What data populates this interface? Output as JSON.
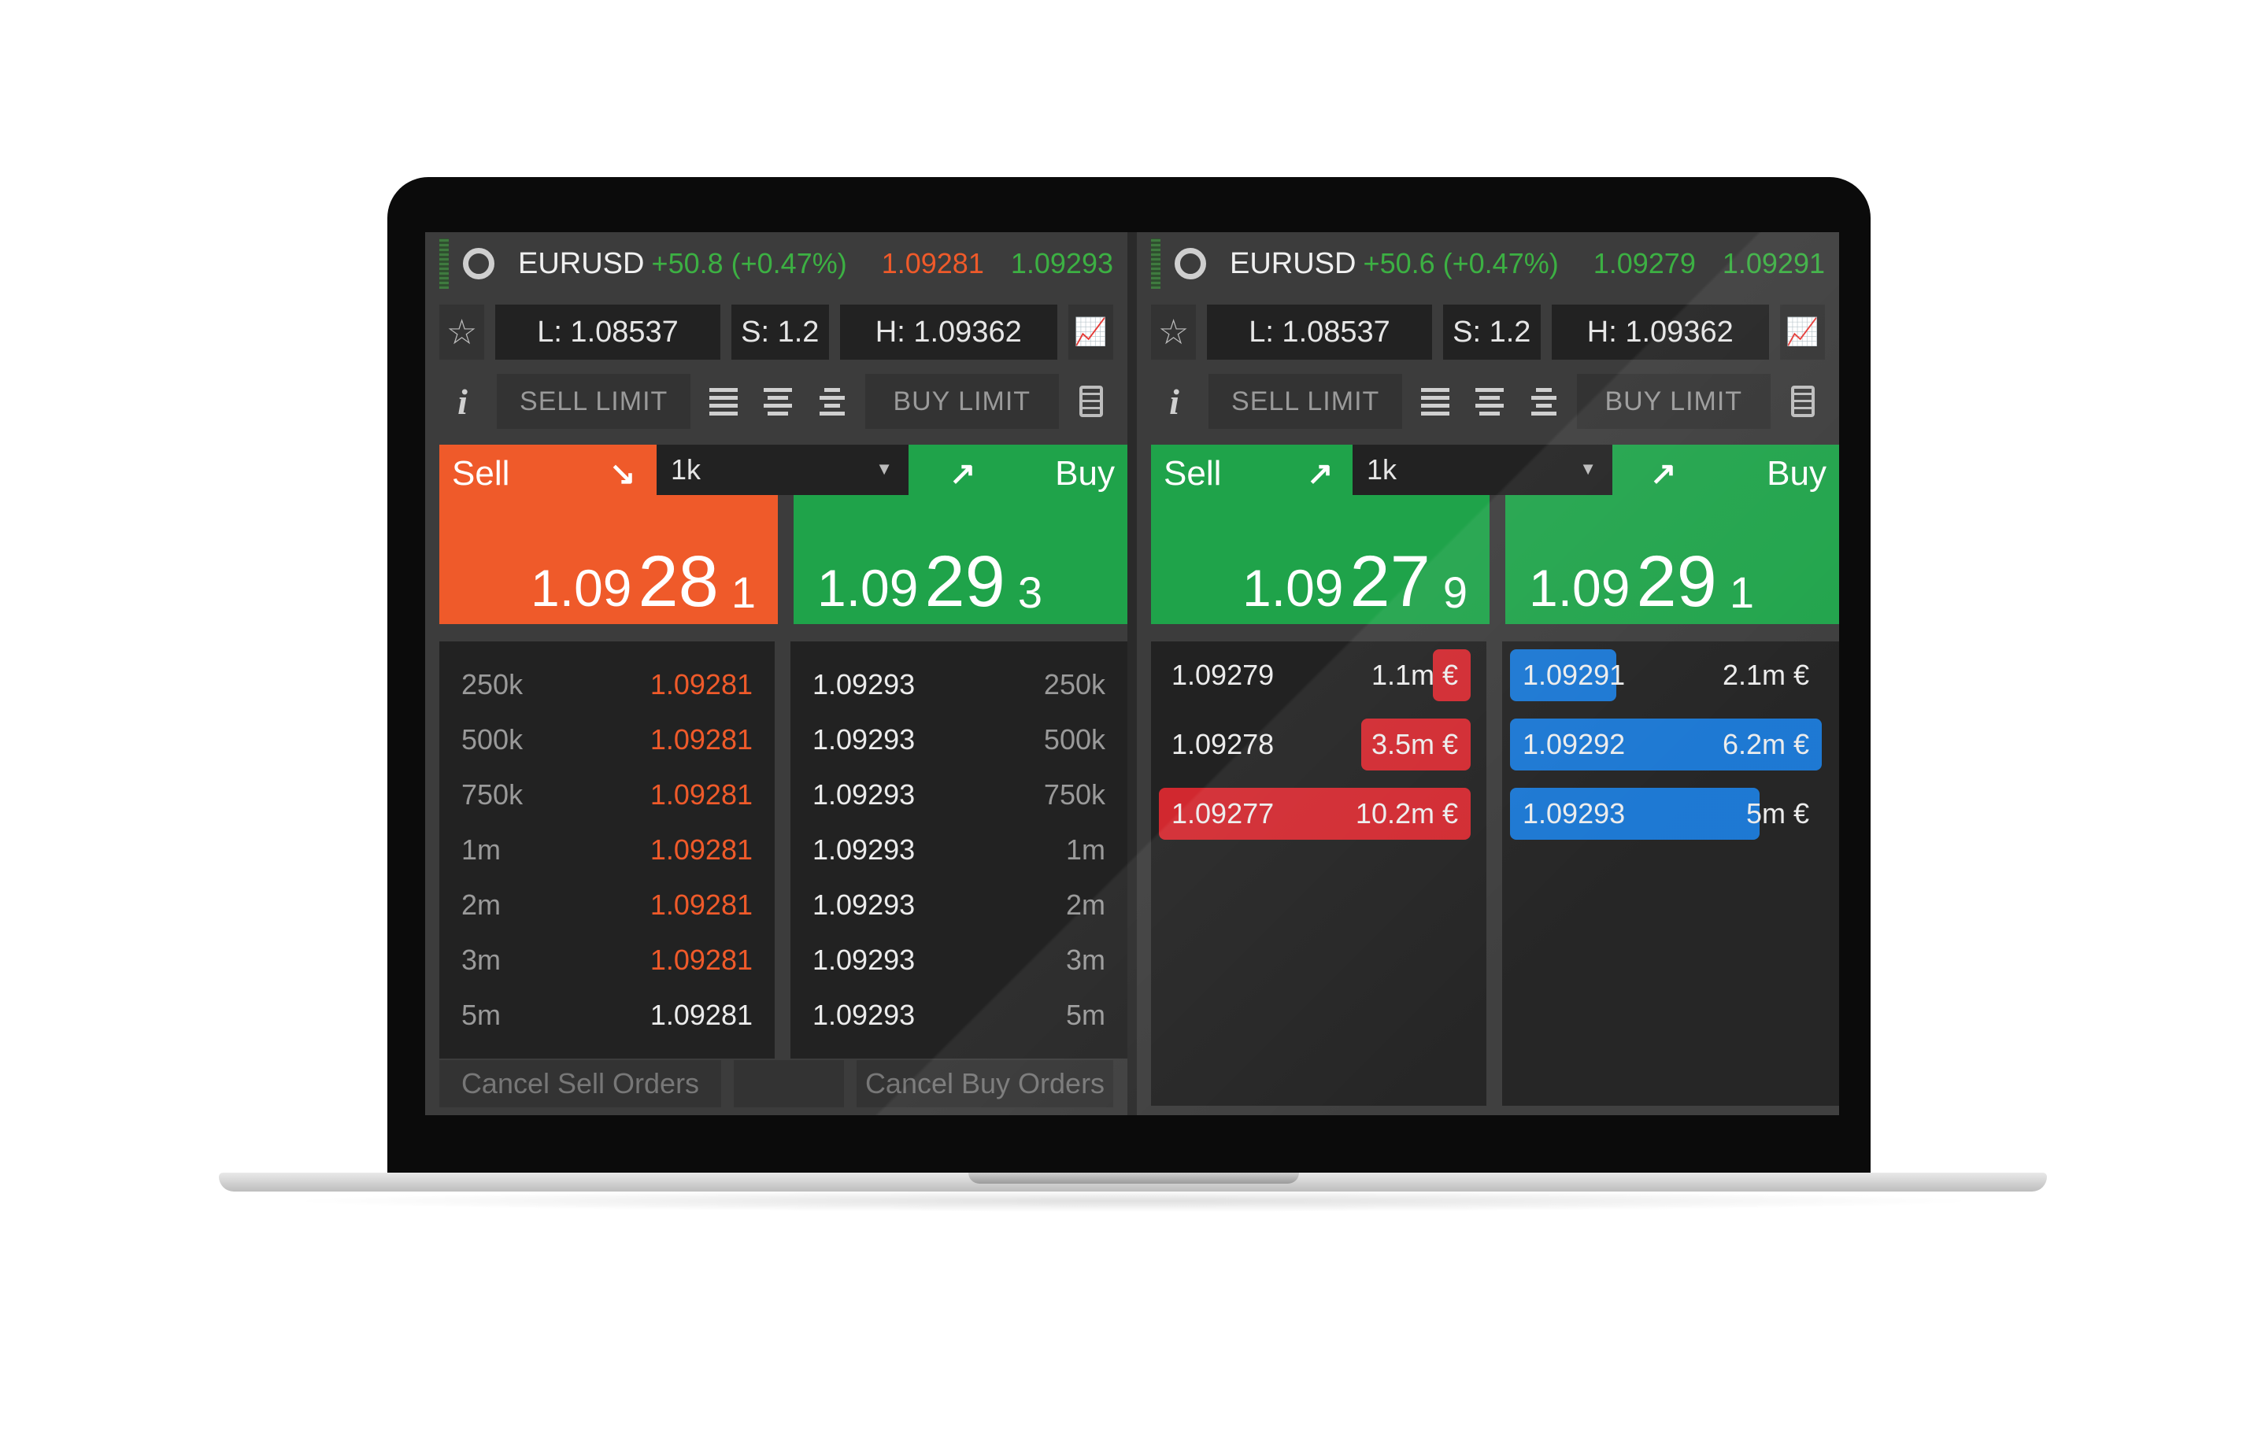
{
  "panels": [
    {
      "symbol": "EURUSD",
      "change": "+50.8 (+0.47%)",
      "bid": "1.09281",
      "ask": "1.09293",
      "low": "L: 1.08537",
      "spread": "S: 1.2",
      "high": "H: 1.09362",
      "sell_limit": "SELL LIMIT",
      "buy_limit": "BUY LIMIT",
      "sell_label": "Sell",
      "buy_label": "Buy",
      "quantity": "1k",
      "sell_price": {
        "a": "1.09",
        "b": "28",
        "c": "1"
      },
      "buy_price": {
        "a": "1.09",
        "b": "29",
        "c": "3"
      },
      "sell_depth": [
        {
          "q": "250k",
          "p": "1.09281"
        },
        {
          "q": "500k",
          "p": "1.09281"
        },
        {
          "q": "750k",
          "p": "1.09281"
        },
        {
          "q": "1m",
          "p": "1.09281"
        },
        {
          "q": "2m",
          "p": "1.09281"
        },
        {
          "q": "3m",
          "p": "1.09281"
        },
        {
          "q": "5m",
          "p": "1.09281"
        }
      ],
      "buy_depth": [
        {
          "p": "1.09293",
          "q": "250k"
        },
        {
          "p": "1.09293",
          "q": "500k"
        },
        {
          "p": "1.09293",
          "q": "750k"
        },
        {
          "p": "1.09293",
          "q": "1m"
        },
        {
          "p": "1.09293",
          "q": "2m"
        },
        {
          "p": "1.09293",
          "q": "3m"
        },
        {
          "p": "1.09293",
          "q": "5m"
        }
      ],
      "cancel_sell": "Cancel Sell Orders",
      "cancel_buy": "Cancel Buy Orders"
    },
    {
      "symbol": "EURUSD",
      "change": "+50.6 (+0.47%)",
      "bid": "1.09279",
      "ask": "1.09291",
      "low": "L: 1.08537",
      "spread": "S: 1.2",
      "high": "H: 1.09362",
      "sell_limit": "SELL LIMIT",
      "buy_limit": "BUY LIMIT",
      "sell_label": "Sell",
      "buy_label": "Buy",
      "quantity": "1k",
      "sell_price": {
        "a": "1.09",
        "b": "27",
        "c": "9"
      },
      "buy_price": {
        "a": "1.09",
        "b": "29",
        "c": "1"
      },
      "sell_book": [
        {
          "p": "1.09279",
          "q": "1.1m €",
          "fill": 0.1
        },
        {
          "p": "1.09278",
          "q": "3.5m €",
          "fill": 0.35
        },
        {
          "p": "1.09277",
          "q": "10.2m €",
          "fill": 1.0
        }
      ],
      "buy_book": [
        {
          "p": "1.09291",
          "q": "2.1m €",
          "fill": 0.34
        },
        {
          "p": "1.09292",
          "q": "6.2m €",
          "fill": 1.0
        },
        {
          "p": "1.09293",
          "q": "5m €",
          "fill": 0.8
        }
      ]
    }
  ],
  "colors": {
    "sell_orange": "#ef5a2a",
    "buy_green": "#1fa34a",
    "bid_red": "#d1282f",
    "ask_blue": "#1976d2",
    "panel_bg": "#3c3c3c"
  }
}
